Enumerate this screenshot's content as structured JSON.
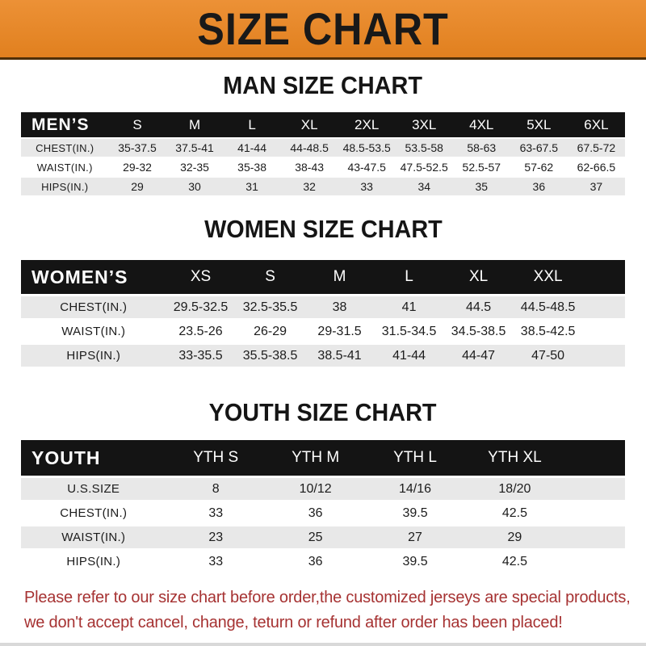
{
  "banner": {
    "title": "SIZE CHART"
  },
  "colors": {
    "banner_bg": "#E6862B",
    "header_bar_bg": "#141414",
    "row_alt_bg": "#E8E8E8",
    "footer_text": "#A63232"
  },
  "sections": [
    {
      "id": "men",
      "title": "MAN SIZE CHART",
      "header_label": "MEN’S",
      "sizes": [
        "S",
        "M",
        "L",
        "XL",
        "2XL",
        "3XL",
        "4XL",
        "5XL",
        "6XL"
      ],
      "rows": [
        {
          "label": "CHEST(IN.)",
          "values": [
            "35-37.5",
            "37.5-41",
            "41-44",
            "44-48.5",
            "48.5-53.5",
            "53.5-58",
            "58-63",
            "63-67.5",
            "67.5-72"
          ]
        },
        {
          "label": "WAIST(IN.)",
          "values": [
            "29-32",
            "32-35",
            "35-38",
            "38-43",
            "43-47.5",
            "47.5-52.5",
            "52.5-57",
            "57-62",
            "62-66.5"
          ]
        },
        {
          "label": "HIPS(IN.)",
          "values": [
            "29",
            "30",
            "31",
            "32",
            "33",
            "34",
            "35",
            "36",
            "37"
          ]
        }
      ]
    },
    {
      "id": "women",
      "title": "WOMEN SIZE CHART",
      "header_label": "WOMEN’S",
      "sizes": [
        "XS",
        "S",
        "M",
        "L",
        "XL",
        "XXL"
      ],
      "rows": [
        {
          "label": "CHEST(IN.)",
          "values": [
            "29.5-32.5",
            "32.5-35.5",
            "38",
            "41",
            "44.5",
            "44.5-48.5"
          ]
        },
        {
          "label": "WAIST(IN.)",
          "values": [
            "23.5-26",
            "26-29",
            "29-31.5",
            "31.5-34.5",
            "34.5-38.5",
            "38.5-42.5"
          ]
        },
        {
          "label": "HIPS(IN.)",
          "values": [
            "33-35.5",
            "35.5-38.5",
            "38.5-41",
            "41-44",
            "44-47",
            "47-50"
          ]
        }
      ]
    },
    {
      "id": "youth",
      "title": "YOUTH SIZE CHART",
      "header_label": "YOUTH",
      "sizes": [
        "YTH S",
        "YTH M",
        "YTH L",
        "YTH XL"
      ],
      "rows": [
        {
          "label": "U.S.SIZE",
          "values": [
            "8",
            "10/12",
            "14/16",
            "18/20"
          ]
        },
        {
          "label": "CHEST(IN.)",
          "values": [
            "33",
            "36",
            "39.5",
            "42.5"
          ]
        },
        {
          "label": "WAIST(IN.)",
          "values": [
            "23",
            "25",
            "27",
            "29"
          ]
        },
        {
          "label": "HIPS(IN.)",
          "values": [
            "33",
            "36",
            "39.5",
            "42.5"
          ]
        }
      ]
    }
  ],
  "footer": {
    "line1": "Please refer to our size chart before order,the customized jerseys are special products,",
    "line2": "we don't accept cancel, change, teturn or refund after order has been placed!"
  }
}
